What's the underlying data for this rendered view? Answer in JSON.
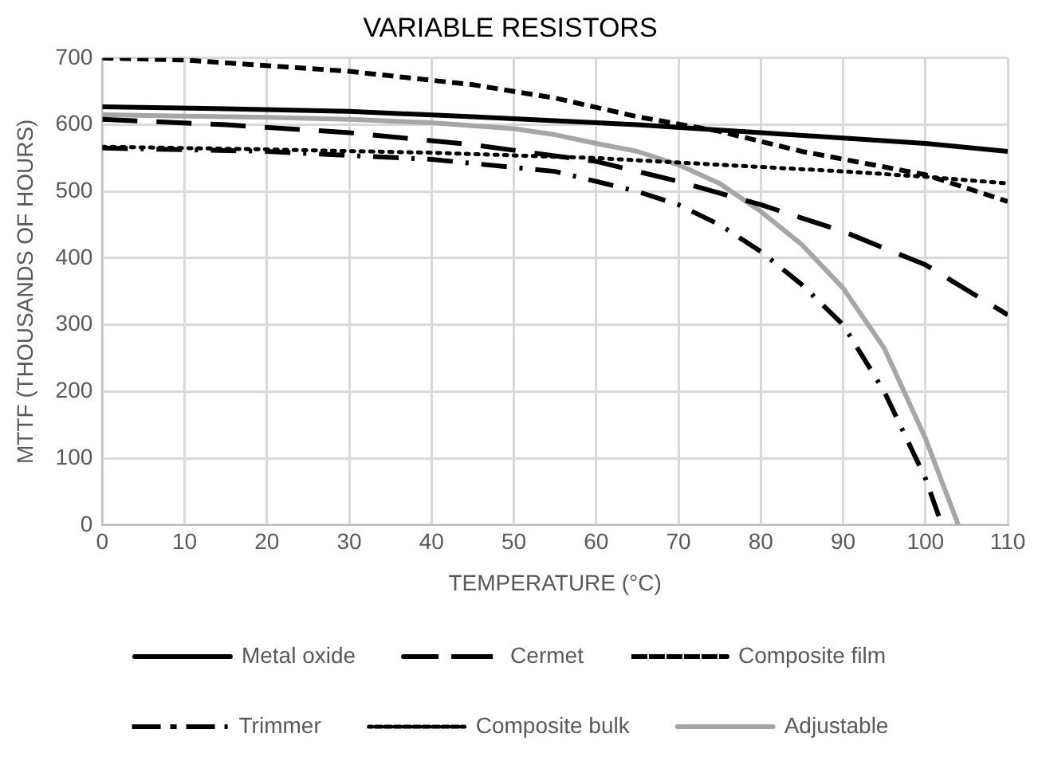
{
  "chart_data": {
    "type": "line",
    "title": "VARIABLE RESISTORS",
    "xlabel": "TEMPERATURE (°C)",
    "ylabel": "MTTF (THOUSANDS OF HOURS)",
    "xlim": [
      0,
      110
    ],
    "xticks": [
      0,
      10,
      20,
      30,
      40,
      50,
      60,
      70,
      80,
      90,
      100,
      110
    ],
    "ylim": [
      0,
      700
    ],
    "yticks": [
      0,
      100,
      200,
      300,
      400,
      500,
      600,
      700
    ],
    "grid": true,
    "legend": "bottom",
    "marker": "none",
    "series": [
      {
        "name": "Metal oxide",
        "color": "#000000",
        "line_style": "solid",
        "x": [
          0,
          15,
          30,
          45,
          55,
          65,
          75,
          80,
          90,
          100,
          110
        ],
        "values": [
          627,
          624,
          620,
          612,
          606,
          600,
          592,
          588,
          580,
          572,
          560
        ]
      },
      {
        "name": "Cermet",
        "color": "#000000",
        "line_style": "long_dash",
        "x": [
          0,
          15,
          30,
          45,
          60,
          70,
          80,
          90,
          100,
          110
        ],
        "values": [
          608,
          600,
          588,
          570,
          545,
          515,
          480,
          440,
          390,
          315
        ]
      },
      {
        "name": "Composite film",
        "color": "#000000",
        "line_style": "dashed",
        "x": [
          0,
          10,
          30,
          45,
          55,
          65,
          75,
          85,
          100,
          110
        ],
        "values": [
          700,
          697,
          680,
          660,
          640,
          612,
          590,
          560,
          525,
          485
        ]
      },
      {
        "name": "Trimmer",
        "color": "#000000",
        "line_style": "dash_dot",
        "x": [
          0,
          20,
          40,
          55,
          60,
          65,
          70,
          75,
          80,
          85,
          90,
          95,
          100,
          102
        ],
        "values": [
          565,
          560,
          548,
          530,
          515,
          500,
          480,
          450,
          410,
          360,
          300,
          200,
          70,
          0
        ]
      },
      {
        "name": "Composite bulk",
        "color": "#000000",
        "line_style": "dotted",
        "x": [
          0,
          20,
          40,
          60,
          75,
          90,
          100,
          110
        ],
        "values": [
          567,
          563,
          558,
          550,
          540,
          530,
          522,
          512
        ]
      },
      {
        "name": "Adjustable",
        "color": "#a6a6a6",
        "line_style": "solid",
        "x": [
          0,
          10,
          20,
          30,
          40,
          50,
          55,
          60,
          65,
          70,
          75,
          80,
          85,
          90,
          95,
          100,
          104
        ],
        "values": [
          615,
          613,
          611,
          608,
          603,
          594,
          585,
          572,
          560,
          540,
          512,
          470,
          420,
          355,
          265,
          130,
          0
        ]
      }
    ]
  }
}
